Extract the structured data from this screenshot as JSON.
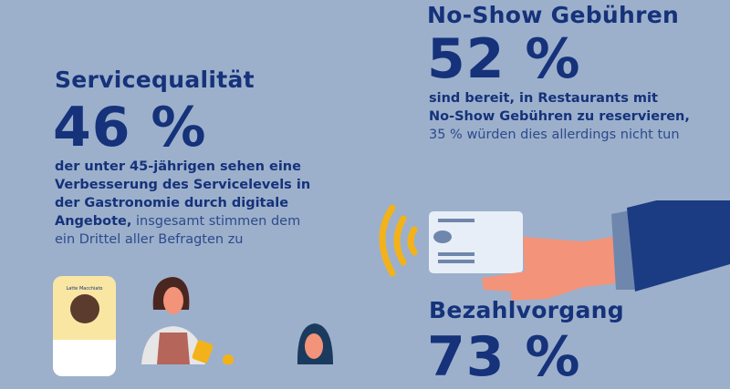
{
  "no_show": {
    "title": "No-Show Gebühren",
    "value": "52 %",
    "line1": "sind bereit, in Restaurants mit",
    "line2": "No-Show Gebühren zu reservieren,",
    "line3": "35 % würden dies allerdings nicht tun"
  },
  "service": {
    "title": "Servicequalität",
    "value": "46 %",
    "line1": "der unter 45-jährigen sehen eine",
    "line2": "Verbesserung des Servicelevels in",
    "line3": "der Gastronomie durch digitale",
    "line4_bold": "Angebote,",
    "line4_rest": " insgesamt stimmen dem",
    "line5": "ein Drittel aller Befragten zu"
  },
  "payment": {
    "title": "Bezahlvorgang",
    "value": "73 %"
  },
  "phone": {
    "title": "Latte Macchiato"
  },
  "colors": {
    "background": "#9cb0cc",
    "text": "#15327a",
    "accent": "#f3b21a"
  }
}
